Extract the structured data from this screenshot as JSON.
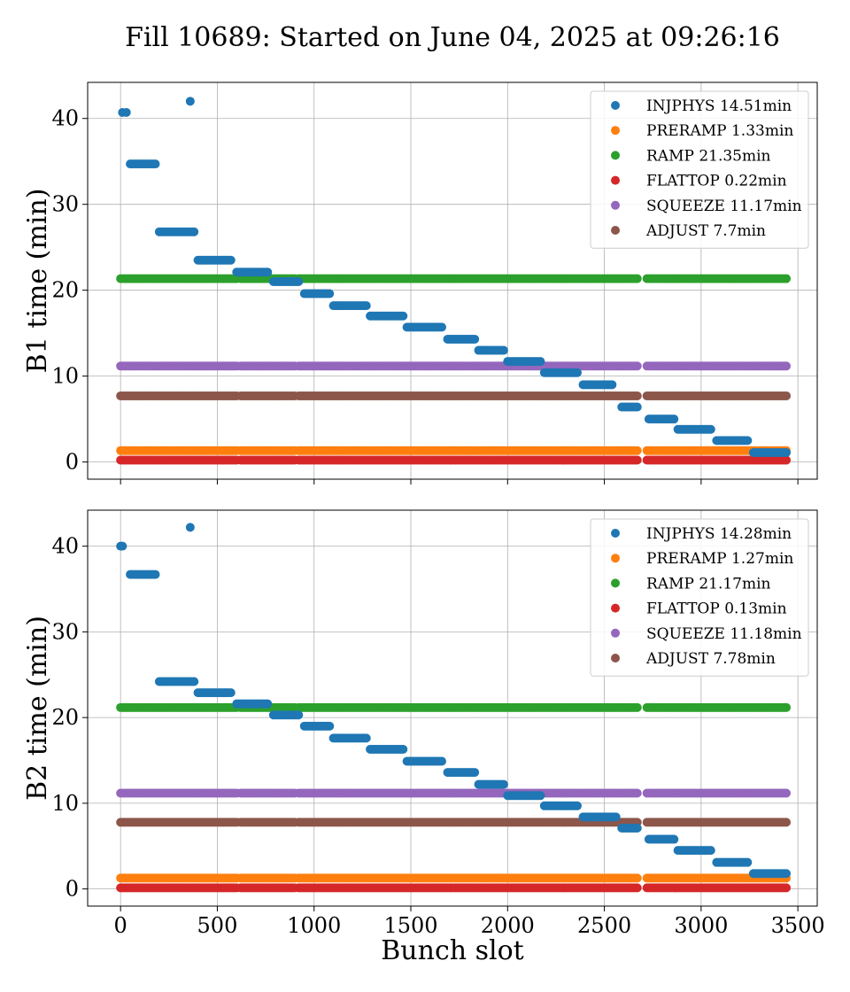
{
  "figure": {
    "title": "Fill 10689: Started on June 04, 2025 at 09:26:16",
    "xlabel": "Bunch slot"
  },
  "colors": {
    "INJPHYS": "#1f77b4",
    "PRERAMP": "#ff7f0e",
    "RAMP": "#2ca02c",
    "FLATTOP": "#d62728",
    "SQUEEZE": "#9467bd",
    "ADJUST": "#8c564b"
  },
  "chart_data": [
    {
      "type": "scatter",
      "ylabel": "B1 time (min)",
      "xlim": [
        -170,
        3600
      ],
      "ylim": [
        -2,
        44.2
      ],
      "xticks": [
        0,
        500,
        1000,
        1500,
        2000,
        2500,
        3000,
        3500
      ],
      "yticks": [
        0,
        10,
        20,
        30,
        40
      ],
      "grid": true,
      "legend_position": "top-right",
      "segments": [
        [
          0,
          600
        ],
        [
          620,
          900
        ],
        [
          920,
          2670
        ],
        [
          2720,
          3440
        ]
      ],
      "series": [
        {
          "name": "INJPHYS 14.51min",
          "key": "INJPHYS",
          "groups": [
            {
              "x": [
                10,
                30
              ],
              "y": 40.7
            },
            {
              "x": 360,
              "y": 42.0
            },
            {
              "x": 50,
              "x2": 180,
              "y": 34.7
            },
            {
              "x": 200,
              "x2": 380,
              "y": 26.8
            },
            {
              "x": 400,
              "x2": 570,
              "y": 23.5
            },
            {
              "x": 600,
              "x2": 760,
              "y": 22.1
            },
            {
              "x": 790,
              "x2": 920,
              "y": 21.0
            },
            {
              "x": 950,
              "x2": 1080,
              "y": 19.6
            },
            {
              "x": 1100,
              "x2": 1270,
              "y": 18.2
            },
            {
              "x": 1290,
              "x2": 1460,
              "y": 17.0
            },
            {
              "x": 1480,
              "x2": 1660,
              "y": 15.7
            },
            {
              "x": 1690,
              "x2": 1830,
              "y": 14.3
            },
            {
              "x": 1850,
              "x2": 1980,
              "y": 13.0
            },
            {
              "x": 2000,
              "x2": 2170,
              "y": 11.7
            },
            {
              "x": 2190,
              "x2": 2360,
              "y": 10.4
            },
            {
              "x": 2390,
              "x2": 2540,
              "y": 9.0
            },
            {
              "x": 2590,
              "x2": 2670,
              "y": 6.4
            },
            {
              "x": 2730,
              "x2": 2860,
              "y": 5.0
            },
            {
              "x": 2880,
              "x2": 3050,
              "y": 3.8
            },
            {
              "x": 3080,
              "x2": 3240,
              "y": 2.5
            },
            {
              "x": 3270,
              "x2": 3440,
              "y": 1.1
            }
          ]
        },
        {
          "name": "PRERAMP 1.33min",
          "key": "PRERAMP",
          "y": 1.33
        },
        {
          "name": "RAMP 21.35min",
          "key": "RAMP",
          "y": 21.35
        },
        {
          "name": "FLATTOP 0.22min",
          "key": "FLATTOP",
          "y": 0.22
        },
        {
          "name": "SQUEEZE 11.17min",
          "key": "SQUEEZE",
          "y": 11.17
        },
        {
          "name": "ADJUST 7.7min",
          "key": "ADJUST",
          "y": 7.7
        }
      ]
    },
    {
      "type": "scatter",
      "ylabel": "B2 time (min)",
      "xlim": [
        -170,
        3600
      ],
      "ylim": [
        -2,
        44.2
      ],
      "xticks": [
        0,
        500,
        1000,
        1500,
        2000,
        2500,
        3000,
        3500
      ],
      "yticks": [
        0,
        10,
        20,
        30,
        40
      ],
      "grid": true,
      "legend_position": "top-right",
      "segments": [
        [
          0,
          600
        ],
        [
          620,
          900
        ],
        [
          920,
          2670
        ],
        [
          2720,
          3440
        ]
      ],
      "series": [
        {
          "name": "INJPHYS 14.28min",
          "key": "INJPHYS",
          "groups": [
            {
              "x": [
                0,
                10
              ],
              "y": 40.0
            },
            {
              "x": 360,
              "y": 42.2
            },
            {
              "x": 50,
              "x2": 180,
              "y": 36.7
            },
            {
              "x": 200,
              "x2": 380,
              "y": 24.2
            },
            {
              "x": 400,
              "x2": 570,
              "y": 22.9
            },
            {
              "x": 600,
              "x2": 760,
              "y": 21.6
            },
            {
              "x": 790,
              "x2": 920,
              "y": 20.3
            },
            {
              "x": 950,
              "x2": 1080,
              "y": 19.0
            },
            {
              "x": 1100,
              "x2": 1270,
              "y": 17.6
            },
            {
              "x": 1290,
              "x2": 1460,
              "y": 16.3
            },
            {
              "x": 1480,
              "x2": 1660,
              "y": 14.9
            },
            {
              "x": 1690,
              "x2": 1830,
              "y": 13.6
            },
            {
              "x": 1850,
              "x2": 1980,
              "y": 12.2
            },
            {
              "x": 2000,
              "x2": 2170,
              "y": 10.9
            },
            {
              "x": 2190,
              "x2": 2360,
              "y": 9.7
            },
            {
              "x": 2390,
              "x2": 2560,
              "y": 8.4
            },
            {
              "x": 2590,
              "x2": 2670,
              "y": 7.1
            },
            {
              "x": 2730,
              "x2": 2860,
              "y": 5.8
            },
            {
              "x": 2880,
              "x2": 3050,
              "y": 4.5
            },
            {
              "x": 3080,
              "x2": 3240,
              "y": 3.1
            },
            {
              "x": 3270,
              "x2": 3440,
              "y": 1.8
            }
          ]
        },
        {
          "name": "PRERAMP 1.27min",
          "key": "PRERAMP",
          "y": 1.27
        },
        {
          "name": "RAMP 21.17min",
          "key": "RAMP",
          "y": 21.17
        },
        {
          "name": "FLATTOP 0.13min",
          "key": "FLATTOP",
          "y": 0.13
        },
        {
          "name": "SQUEEZE 11.18min",
          "key": "SQUEEZE",
          "y": 11.18
        },
        {
          "name": "ADJUST 7.78min",
          "key": "ADJUST",
          "y": 7.78
        }
      ]
    }
  ]
}
